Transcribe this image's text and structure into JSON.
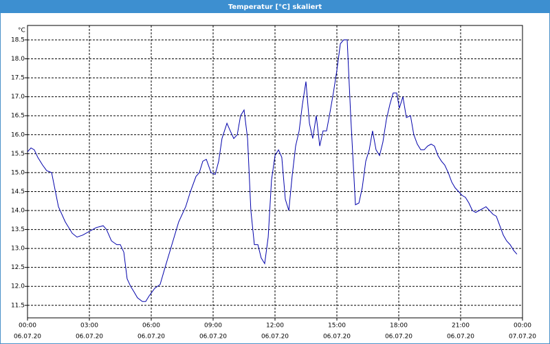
{
  "chart_data": {
    "type": "line",
    "title": "Temperatur [°C] skaliert",
    "y_label": "°C",
    "x": [
      0,
      0.17,
      0.33,
      0.5,
      0.73,
      0.93,
      1.17,
      1.5,
      1.83,
      2.17,
      2.4,
      2.67,
      3,
      3.33,
      3.67,
      3.83,
      4.07,
      4.33,
      4.5,
      4.67,
      4.83,
      5,
      5.17,
      5.33,
      5.57,
      5.73,
      5.9,
      6.17,
      6.43,
      6.67,
      7,
      7.33,
      7.67,
      7.9,
      8.17,
      8.33,
      8.5,
      8.67,
      8.9,
      9.1,
      9.27,
      9.43,
      9.67,
      9.83,
      10,
      10.17,
      10.33,
      10.5,
      10.67,
      10.83,
      11,
      11.17,
      11.33,
      11.5,
      11.67,
      11.83,
      12,
      12.17,
      12.33,
      12.5,
      12.67,
      12.83,
      13,
      13.17,
      13.33,
      13.5,
      13.67,
      13.83,
      14,
      14.17,
      14.33,
      14.5,
      14.67,
      14.83,
      15,
      15.17,
      15.33,
      15.5,
      15.67,
      15.9,
      16.07,
      16.23,
      16.4,
      16.57,
      16.73,
      16.9,
      17.07,
      17.23,
      17.4,
      17.57,
      17.73,
      17.9,
      18.03,
      18.2,
      18.37,
      18.57,
      18.73,
      18.9,
      19.07,
      19.23,
      19.4,
      19.57,
      19.73,
      19.9,
      20.07,
      20.23,
      20.4,
      20.57,
      20.73,
      20.9,
      21.07,
      21.23,
      21.4,
      21.57,
      21.73,
      21.9,
      22.07,
      22.23,
      22.4,
      22.57,
      22.73,
      22.9,
      23.07,
      23.23,
      23.4,
      23.57,
      23.73
    ],
    "series": [
      {
        "name": "Temperatur",
        "color": "#0000aa",
        "values": [
          15.55,
          15.65,
          15.6,
          15.4,
          15.2,
          15.05,
          15.0,
          14.1,
          13.7,
          13.4,
          13.3,
          13.35,
          13.45,
          13.55,
          13.6,
          13.5,
          13.2,
          13.1,
          13.1,
          12.9,
          12.2,
          12.0,
          11.85,
          11.7,
          11.6,
          11.6,
          11.75,
          11.95,
          12.05,
          12.5,
          13.1,
          13.7,
          14.1,
          14.5,
          14.9,
          15.0,
          15.3,
          15.35,
          15.0,
          14.95,
          15.3,
          15.9,
          16.3,
          16.1,
          15.9,
          16.0,
          16.5,
          16.65,
          15.9,
          14.0,
          13.1,
          13.1,
          12.75,
          12.6,
          13.3,
          14.8,
          15.45,
          15.6,
          15.4,
          14.3,
          14.0,
          14.9,
          15.7,
          16.1,
          16.8,
          17.4,
          16.3,
          15.9,
          16.5,
          15.7,
          16.1,
          16.1,
          16.6,
          17.1,
          17.7,
          18.4,
          18.5,
          18.5,
          16.5,
          14.15,
          14.2,
          14.6,
          15.3,
          15.6,
          16.1,
          15.6,
          15.45,
          15.8,
          16.4,
          16.8,
          17.1,
          17.1,
          16.7,
          17.0,
          16.45,
          16.5,
          16.0,
          15.75,
          15.6,
          15.6,
          15.7,
          15.75,
          15.7,
          15.45,
          15.3,
          15.2,
          15.0,
          14.75,
          14.6,
          14.5,
          14.4,
          14.35,
          14.2,
          14.0,
          13.95,
          14.0,
          14.05,
          14.1,
          14.0,
          13.9,
          13.85,
          13.6,
          13.35,
          13.2,
          13.1,
          12.95,
          12.85
        ]
      }
    ],
    "xlim": [
      0,
      24
    ],
    "xticks": [
      {
        "value": 0,
        "label": "00:00",
        "sublabel": "06.07.20"
      },
      {
        "value": 3,
        "label": "03:00",
        "sublabel": "06.07.20"
      },
      {
        "value": 6,
        "label": "06:00",
        "sublabel": "06.07.20"
      },
      {
        "value": 9,
        "label": "09:00",
        "sublabel": "06.07.20"
      },
      {
        "value": 12,
        "label": "12:00",
        "sublabel": "06.07.20"
      },
      {
        "value": 15,
        "label": "15:00",
        "sublabel": "06.07.20"
      },
      {
        "value": 18,
        "label": "18:00",
        "sublabel": "06.07.20"
      },
      {
        "value": 21,
        "label": "21:00",
        "sublabel": "06.07.20"
      },
      {
        "value": 24,
        "label": "00:00",
        "sublabel": "07.07.20"
      }
    ],
    "ylim": [
      11.17,
      18.88
    ],
    "yticks": [
      11.5,
      {
        "value": 12,
        "label": "12.0"
      },
      12.5,
      {
        "value": 13,
        "label": "13.0"
      },
      13.5,
      {
        "value": 14,
        "label": "14.0"
      },
      14.5,
      {
        "value": 15,
        "label": "15.0"
      },
      15.5,
      {
        "value": 16,
        "label": "16.0"
      },
      16.5,
      {
        "value": 17,
        "label": "17.0"
      },
      17.5,
      {
        "value": 18,
        "label": "18.0"
      },
      18.5
    ],
    "grid": true
  }
}
